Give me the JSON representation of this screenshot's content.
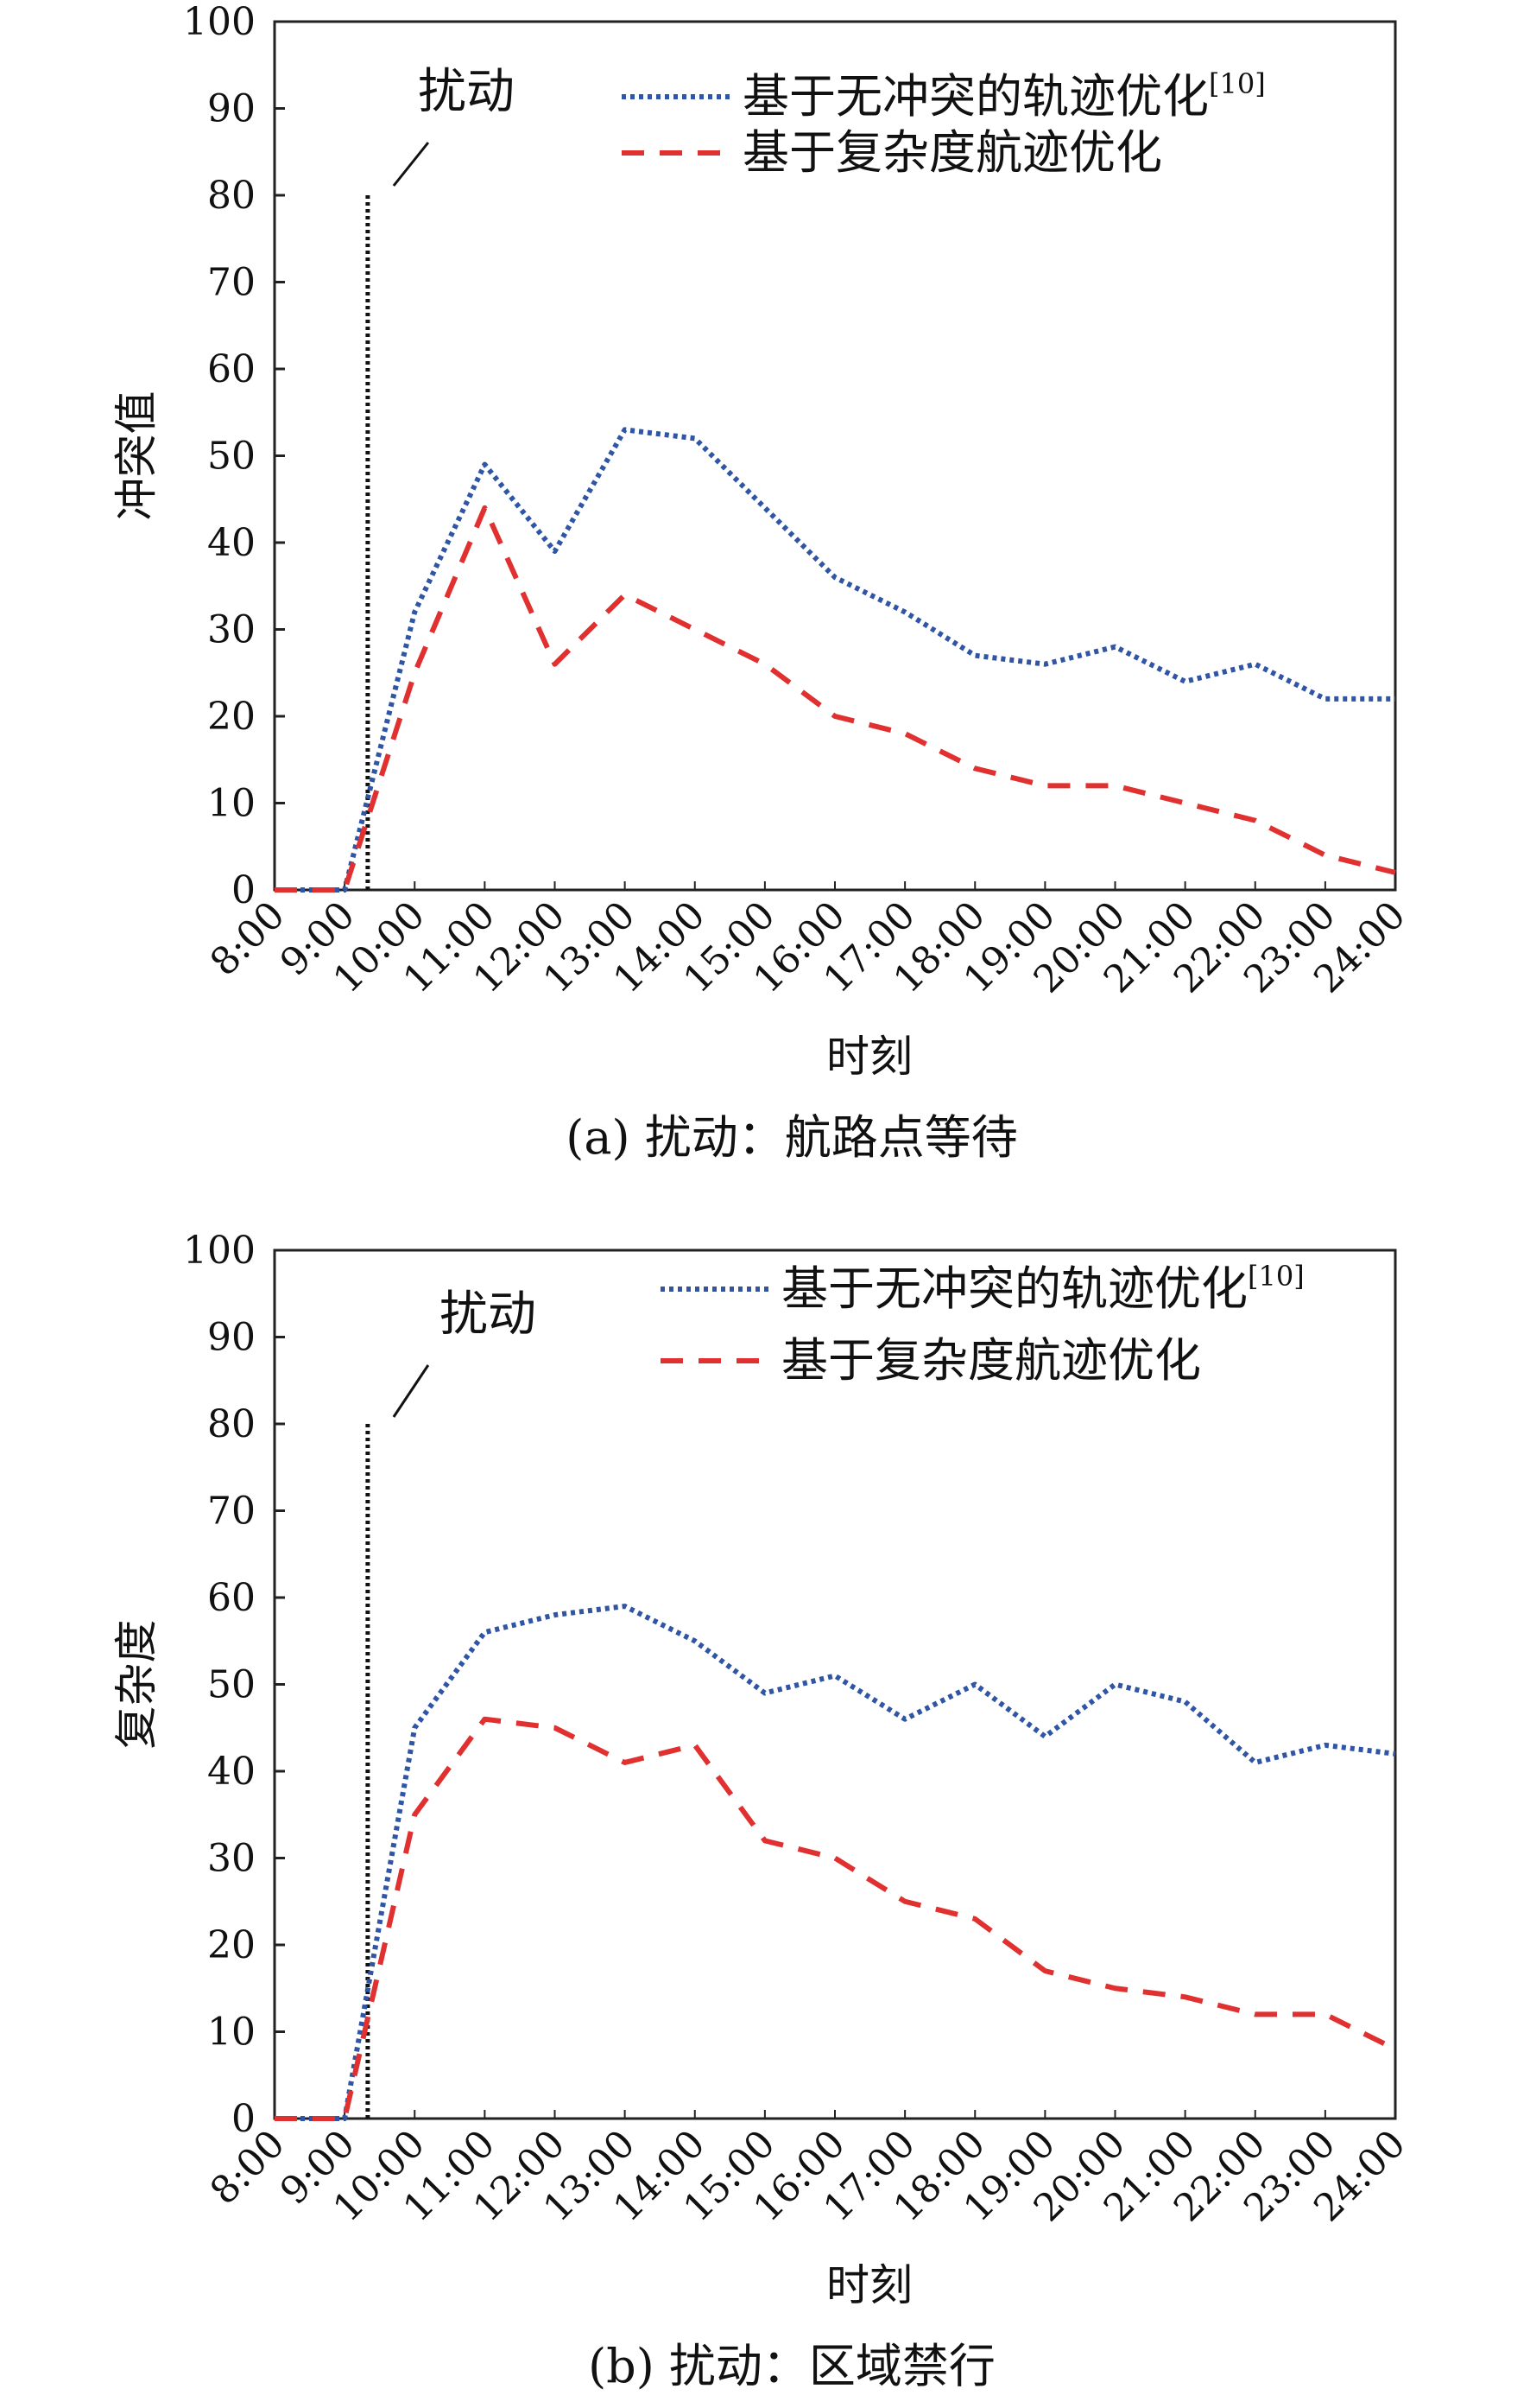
{
  "chart_data": [
    {
      "id": "a",
      "type": "line",
      "x": [
        "8:00",
        "9:00",
        "10:00",
        "11:00",
        "12:00",
        "13:00",
        "14:00",
        "15:00",
        "16:00",
        "17:00",
        "18:00",
        "19:00",
        "20:00",
        "21:00",
        "22:00",
        "23:00",
        "24:00"
      ],
      "xlabel": "时刻",
      "ylabel": "冲突值",
      "ylim": [
        0,
        100
      ],
      "yticks": [
        0,
        10,
        20,
        30,
        40,
        50,
        60,
        70,
        80,
        90,
        100
      ],
      "caption": "(a) 扰动：航路点等待",
      "annotation": {
        "text": "扰动",
        "x": 9.33,
        "y_top": 80
      },
      "series": [
        {
          "name": "基于无冲突的轨迹优化",
          "ref": "[10]",
          "style": "dotted",
          "color": "#2f55a4",
          "values": [
            0,
            0,
            32,
            49,
            39,
            53,
            52,
            44,
            36,
            32,
            27,
            26,
            28,
            24,
            26,
            22,
            22
          ]
        },
        {
          "name": "基于复杂度航迹优化",
          "ref": "",
          "style": "dashed",
          "color": "#e03030",
          "values": [
            0,
            0,
            25,
            44,
            26,
            34,
            30,
            26,
            20,
            18,
            14,
            12,
            12,
            10,
            8,
            4,
            2
          ]
        }
      ]
    },
    {
      "id": "b",
      "type": "line",
      "x": [
        "8:00",
        "9:00",
        "10:00",
        "11:00",
        "12:00",
        "13:00",
        "14:00",
        "15:00",
        "16:00",
        "17:00",
        "18:00",
        "19:00",
        "20:00",
        "21:00",
        "22:00",
        "23:00",
        "24:00"
      ],
      "xlabel": "时刻",
      "ylabel": "复杂度",
      "ylim": [
        0,
        100
      ],
      "yticks": [
        0,
        10,
        20,
        30,
        40,
        50,
        60,
        70,
        80,
        90,
        100
      ],
      "caption": "(b) 扰动：区域禁行",
      "annotation": {
        "text": "扰动",
        "x": 9.33,
        "y_top": 80
      },
      "series": [
        {
          "name": "基于无冲突的轨迹优化",
          "ref": "[10]",
          "style": "dotted",
          "color": "#2f55a4",
          "values": [
            0,
            0,
            45,
            56,
            58,
            59,
            55,
            49,
            51,
            46,
            50,
            44,
            50,
            48,
            41,
            43,
            42
          ]
        },
        {
          "name": "基于复杂度航迹优化",
          "ref": "",
          "style": "dashed",
          "color": "#e03030",
          "values": [
            0,
            0,
            35,
            46,
            45,
            41,
            43,
            32,
            30,
            25,
            23,
            17,
            15,
            14,
            12,
            12,
            8
          ]
        }
      ]
    }
  ]
}
